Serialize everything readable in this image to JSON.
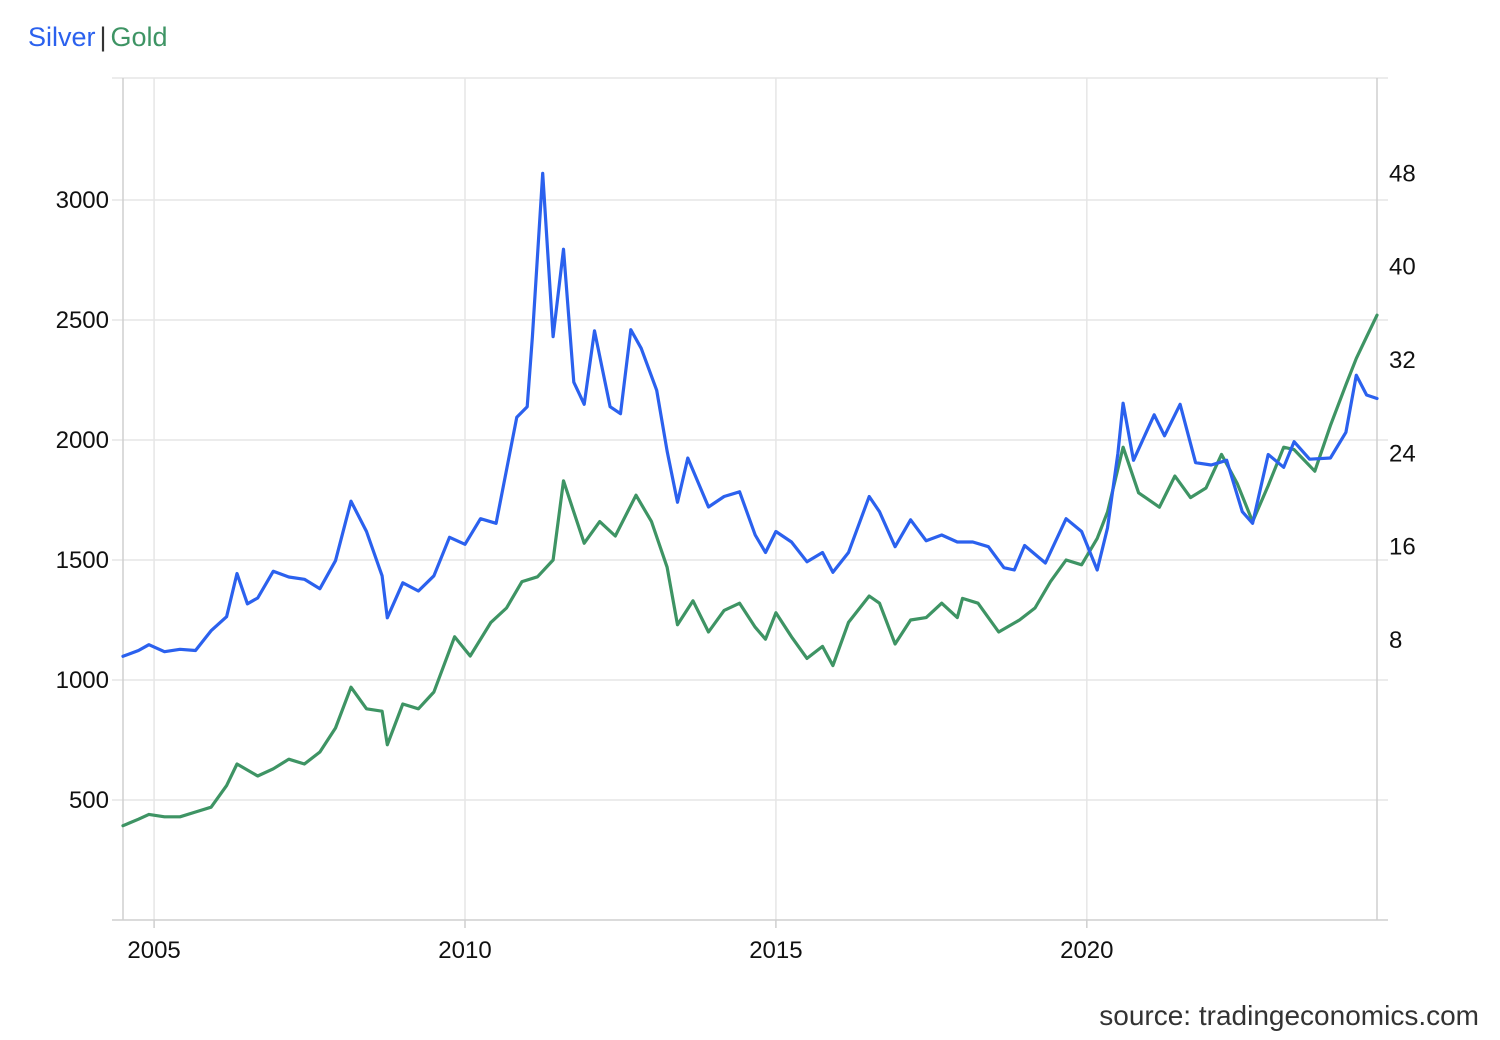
{
  "legend": {
    "silver": "Silver",
    "separator": "|",
    "gold": "Gold"
  },
  "source": "source: tradingeconomics.com",
  "colors": {
    "silver": "#2b61ee",
    "gold": "#3e9464",
    "grid": "#e6e6e6",
    "axis": "#cfcfcf"
  },
  "chart_data": {
    "type": "line",
    "title": "",
    "x_ticks": [
      "2005",
      "2010",
      "2015",
      "2020"
    ],
    "xlim": [
      "2004-07",
      "2024-09"
    ],
    "y_left": {
      "ticks": [
        "500",
        "1000",
        "1500",
        "2000",
        "2500",
        "3000"
      ],
      "range": [
        0,
        3500
      ],
      "series": "Gold"
    },
    "y_right": {
      "ticks": [
        "8",
        "16",
        "24",
        "32",
        "40",
        "48"
      ],
      "range": [
        -16,
        56
      ],
      "series": "Silver"
    },
    "grid": true,
    "legend_position": "top-left",
    "series": [
      {
        "name": "Gold",
        "axis": "left",
        "points": [
          [
            "2004-07",
            393
          ],
          [
            "2004-10",
            420
          ],
          [
            "2004-12",
            440
          ],
          [
            "2005-03",
            430
          ],
          [
            "2005-06",
            430
          ],
          [
            "2005-09",
            450
          ],
          [
            "2005-12",
            470
          ],
          [
            "2006-03",
            560
          ],
          [
            "2006-05",
            650
          ],
          [
            "2006-09",
            600
          ],
          [
            "2006-12",
            630
          ],
          [
            "2007-03",
            670
          ],
          [
            "2007-06",
            650
          ],
          [
            "2007-09",
            700
          ],
          [
            "2007-12",
            800
          ],
          [
            "2008-03",
            970
          ],
          [
            "2008-06",
            880
          ],
          [
            "2008-09",
            870
          ],
          [
            "2008-10",
            730
          ],
          [
            "2009-01",
            900
          ],
          [
            "2009-04",
            880
          ],
          [
            "2009-07",
            950
          ],
          [
            "2009-11",
            1180
          ],
          [
            "2010-02",
            1100
          ],
          [
            "2010-06",
            1240
          ],
          [
            "2010-09",
            1300
          ],
          [
            "2010-12",
            1410
          ],
          [
            "2011-03",
            1430
          ],
          [
            "2011-06",
            1500
          ],
          [
            "2011-08",
            1830
          ],
          [
            "2011-10",
            1700
          ],
          [
            "2011-12",
            1570
          ],
          [
            "2012-03",
            1660
          ],
          [
            "2012-06",
            1600
          ],
          [
            "2012-10",
            1770
          ],
          [
            "2013-01",
            1660
          ],
          [
            "2013-04",
            1470
          ],
          [
            "2013-06",
            1230
          ],
          [
            "2013-09",
            1330
          ],
          [
            "2013-12",
            1200
          ],
          [
            "2014-03",
            1290
          ],
          [
            "2014-06",
            1320
          ],
          [
            "2014-09",
            1220
          ],
          [
            "2014-11",
            1170
          ],
          [
            "2015-01",
            1280
          ],
          [
            "2015-04",
            1180
          ],
          [
            "2015-07",
            1090
          ],
          [
            "2015-10",
            1140
          ],
          [
            "2015-12",
            1060
          ],
          [
            "2016-03",
            1240
          ],
          [
            "2016-07",
            1350
          ],
          [
            "2016-09",
            1320
          ],
          [
            "2016-12",
            1150
          ],
          [
            "2017-03",
            1250
          ],
          [
            "2017-06",
            1260
          ],
          [
            "2017-09",
            1320
          ],
          [
            "2017-12",
            1260
          ],
          [
            "2018-01",
            1340
          ],
          [
            "2018-04",
            1320
          ],
          [
            "2018-08",
            1200
          ],
          [
            "2018-12",
            1250
          ],
          [
            "2019-03",
            1300
          ],
          [
            "2019-06",
            1410
          ],
          [
            "2019-09",
            1500
          ],
          [
            "2019-12",
            1480
          ],
          [
            "2020-03",
            1590
          ],
          [
            "2020-05",
            1700
          ],
          [
            "2020-08",
            1970
          ],
          [
            "2020-11",
            1780
          ],
          [
            "2021-03",
            1720
          ],
          [
            "2021-06",
            1850
          ],
          [
            "2021-09",
            1760
          ],
          [
            "2021-12",
            1800
          ],
          [
            "2022-03",
            1940
          ],
          [
            "2022-06",
            1820
          ],
          [
            "2022-09",
            1660
          ],
          [
            "2022-12",
            1810
          ],
          [
            "2023-03",
            1970
          ],
          [
            "2023-05",
            1960
          ],
          [
            "2023-09",
            1870
          ],
          [
            "2023-12",
            2060
          ],
          [
            "2024-03",
            2230
          ],
          [
            "2024-05",
            2340
          ],
          [
            "2024-07",
            2430
          ],
          [
            "2024-09",
            2520
          ]
        ]
      },
      {
        "name": "Silver",
        "axis": "right",
        "points": [
          [
            "2004-07",
            6.6
          ],
          [
            "2004-10",
            7.1
          ],
          [
            "2004-12",
            7.6
          ],
          [
            "2005-03",
            7.0
          ],
          [
            "2005-06",
            7.2
          ],
          [
            "2005-09",
            7.1
          ],
          [
            "2005-12",
            8.8
          ],
          [
            "2006-03",
            10.0
          ],
          [
            "2006-05",
            13.7
          ],
          [
            "2006-07",
            11.1
          ],
          [
            "2006-09",
            11.6
          ],
          [
            "2006-12",
            13.9
          ],
          [
            "2007-03",
            13.4
          ],
          [
            "2007-06",
            13.2
          ],
          [
            "2007-09",
            12.4
          ],
          [
            "2007-12",
            14.8
          ],
          [
            "2008-03",
            19.9
          ],
          [
            "2008-06",
            17.3
          ],
          [
            "2008-09",
            13.5
          ],
          [
            "2008-10",
            9.9
          ],
          [
            "2009-01",
            12.9
          ],
          [
            "2009-04",
            12.2
          ],
          [
            "2009-07",
            13.5
          ],
          [
            "2009-10",
            16.8
          ],
          [
            "2010-01",
            16.2
          ],
          [
            "2010-04",
            18.4
          ],
          [
            "2010-07",
            18.0
          ],
          [
            "2010-11",
            27.1
          ],
          [
            "2011-01",
            28.0
          ],
          [
            "2011-02",
            34.0
          ],
          [
            "2011-04",
            48.0
          ],
          [
            "2011-06",
            34.0
          ],
          [
            "2011-08",
            41.5
          ],
          [
            "2011-10",
            30.1
          ],
          [
            "2011-12",
            28.2
          ],
          [
            "2012-02",
            34.5
          ],
          [
            "2012-05",
            28.0
          ],
          [
            "2012-07",
            27.4
          ],
          [
            "2012-09",
            34.6
          ],
          [
            "2012-11",
            33.0
          ],
          [
            "2013-02",
            29.4
          ],
          [
            "2013-04",
            24.2
          ],
          [
            "2013-06",
            19.8
          ],
          [
            "2013-08",
            23.6
          ],
          [
            "2013-12",
            19.4
          ],
          [
            "2014-03",
            20.3
          ],
          [
            "2014-06",
            20.7
          ],
          [
            "2014-09",
            17.0
          ],
          [
            "2014-11",
            15.5
          ],
          [
            "2015-01",
            17.3
          ],
          [
            "2015-04",
            16.4
          ],
          [
            "2015-07",
            14.7
          ],
          [
            "2015-10",
            15.5
          ],
          [
            "2015-12",
            13.8
          ],
          [
            "2016-03",
            15.5
          ],
          [
            "2016-07",
            20.3
          ],
          [
            "2016-09",
            19.0
          ],
          [
            "2016-12",
            16.0
          ],
          [
            "2017-03",
            18.3
          ],
          [
            "2017-06",
            16.5
          ],
          [
            "2017-09",
            17.0
          ],
          [
            "2017-12",
            16.4
          ],
          [
            "2018-03",
            16.4
          ],
          [
            "2018-06",
            16.0
          ],
          [
            "2018-09",
            14.2
          ],
          [
            "2018-11",
            14.0
          ],
          [
            "2019-01",
            16.1
          ],
          [
            "2019-05",
            14.6
          ],
          [
            "2019-09",
            18.4
          ],
          [
            "2019-12",
            17.3
          ],
          [
            "2020-03",
            14.0
          ],
          [
            "2020-05",
            17.6
          ],
          [
            "2020-07",
            24.0
          ],
          [
            "2020-08",
            28.3
          ],
          [
            "2020-10",
            23.4
          ],
          [
            "2021-02",
            27.3
          ],
          [
            "2021-04",
            25.5
          ],
          [
            "2021-07",
            28.2
          ],
          [
            "2021-10",
            23.2
          ],
          [
            "2022-01",
            23.0
          ],
          [
            "2022-04",
            23.4
          ],
          [
            "2022-07",
            19.0
          ],
          [
            "2022-09",
            18.0
          ],
          [
            "2022-12",
            23.9
          ],
          [
            "2023-03",
            22.8
          ],
          [
            "2023-05",
            25.0
          ],
          [
            "2023-08",
            23.5
          ],
          [
            "2023-12",
            23.6
          ],
          [
            "2024-03",
            25.8
          ],
          [
            "2024-05",
            30.7
          ],
          [
            "2024-07",
            29.0
          ],
          [
            "2024-09",
            28.7
          ]
        ]
      }
    ]
  }
}
